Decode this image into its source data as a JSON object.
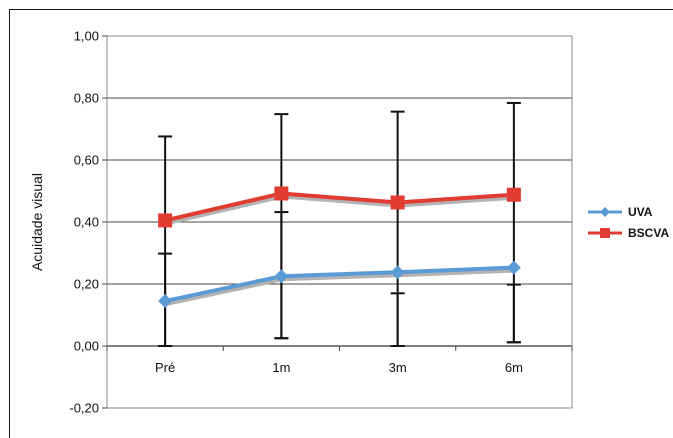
{
  "chart_data": {
    "type": "line",
    "categories": [
      "Pré",
      "1m",
      "3m",
      "6m"
    ],
    "ylabel": "Acuidade visual",
    "xlabel": "",
    "title": "",
    "ylim": [
      -0.2,
      1.0
    ],
    "yticks": [
      "1,00",
      "0,80",
      "0,60",
      "0,40",
      "0,20",
      "0,00",
      "-0,20"
    ],
    "grid": true,
    "legend": "right",
    "series": [
      {
        "name": "UVA",
        "color": "#5b9bd5",
        "marker": "diamond",
        "values": [
          0.145,
          0.225,
          0.238,
          0.253
        ],
        "err_low": [
          0.0,
          0.025,
          0.0,
          0.012
        ],
        "err_high": [
          0.298,
          0.432,
          0.17,
          0.198
        ]
      },
      {
        "name": "BSCVA",
        "color": "#e03c31",
        "marker": "square",
        "values": [
          0.405,
          0.492,
          0.463,
          0.488
        ],
        "err_low": [
          0.0,
          0.025,
          0.0,
          0.012
        ],
        "err_high": [
          0.676,
          0.748,
          0.756,
          0.784
        ]
      }
    ]
  }
}
